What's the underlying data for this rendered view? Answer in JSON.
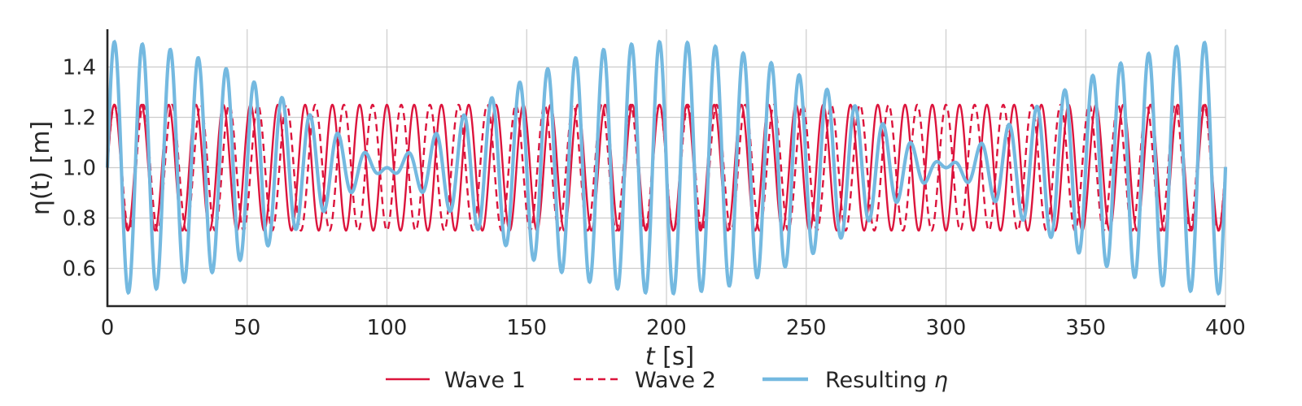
{
  "chart_data": {
    "type": "line",
    "xlabel_main": "t",
    "xlabel_unit": " [s]",
    "ylabel_main": "η(t)",
    "ylabel_unit": " [m]",
    "xlim": [
      0,
      400
    ],
    "ylim": [
      0.45,
      1.55
    ],
    "xticks": [
      0,
      50,
      100,
      150,
      200,
      250,
      300,
      350,
      400
    ],
    "yticks": [
      0.6,
      0.8,
      1.0,
      1.2,
      1.4
    ],
    "ytick_labels": [
      "0.6",
      "0.8",
      "1.0",
      "1.2",
      "1.4"
    ],
    "grid": true,
    "legend_position": "bottom-center",
    "series": [
      {
        "name": "Wave 1",
        "color": "#dc143c",
        "style": "solid",
        "mean": 1.0,
        "amplitude": 0.25,
        "period_s": 9.756
      },
      {
        "name": "Wave 2",
        "color": "#dc143c",
        "style": "dashed",
        "mean": 1.0,
        "amplitude": 0.25,
        "period_s": 10.256
      },
      {
        "name": "Resulting",
        "name_suffix": "η",
        "color": "#74b9e0",
        "style": "solid",
        "mean": 1.0,
        "amplitude": 0.5,
        "beat_period_s": 200
      }
    ]
  }
}
